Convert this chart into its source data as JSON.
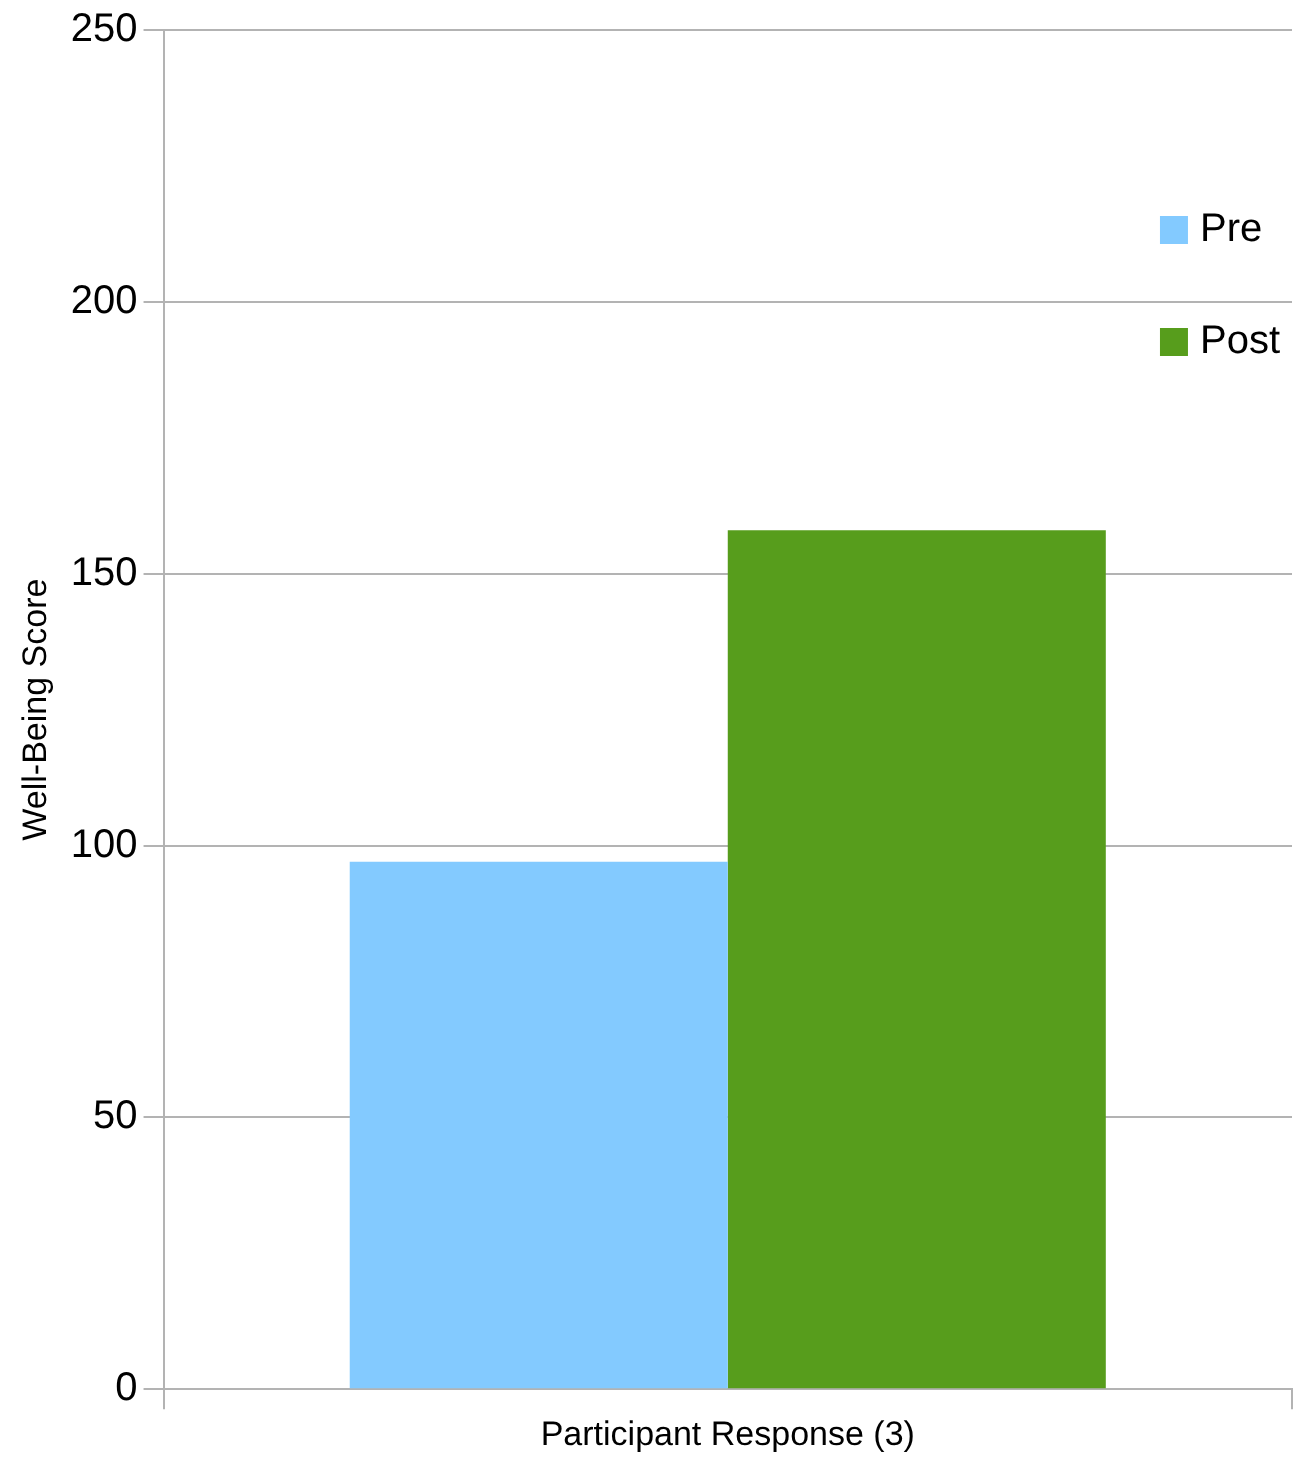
{
  "chart_data": {
    "type": "bar",
    "ylabel": "Well-Being Score",
    "categories": [
      "Participant Response (3)"
    ],
    "series": [
      {
        "name": "Pre",
        "color": "#83caff",
        "values": [
          97
        ]
      },
      {
        "name": "Post",
        "color": "#579d1c",
        "values": [
          158
        ]
      }
    ],
    "ylim": [
      0,
      250
    ],
    "yticks": [
      0,
      50,
      100,
      150,
      200,
      250
    ],
    "grid": "y",
    "legend": "top right"
  }
}
